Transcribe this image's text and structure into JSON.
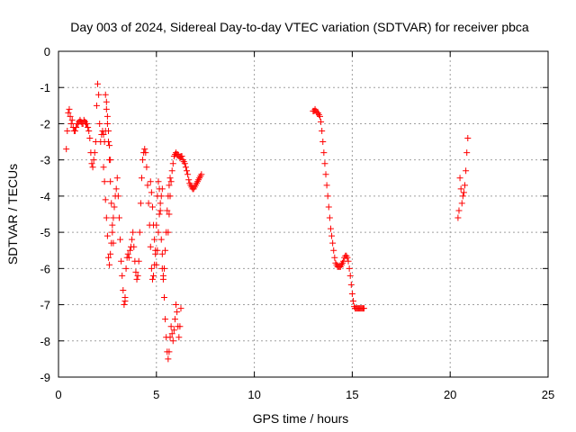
{
  "chart_data": {
    "type": "scatter",
    "title": "Day 003 of 2024, Sidereal Day-to-day VTEC variation (SDTVAR) for receiver pbca",
    "xlabel": "GPS time / hours",
    "ylabel": "SDTVAR / TECUs",
    "xlim": [
      0,
      25
    ],
    "ylim": [
      -9,
      0
    ],
    "xticks": [
      0,
      5,
      10,
      15,
      20,
      25
    ],
    "yticks": [
      0,
      -1,
      -2,
      -3,
      -4,
      -5,
      -6,
      -7,
      -8,
      -9
    ],
    "grid": true,
    "marker": "+",
    "series": [
      {
        "name": "SDTVAR",
        "color": "#ff0000",
        "segments": [
          {
            "x": [
              0.4,
              0.45,
              0.5,
              0.55,
              0.6,
              0.65,
              0.7,
              0.75,
              0.8,
              0.85,
              0.9,
              0.95,
              1.0,
              1.05,
              1.1,
              1.15,
              1.2,
              1.25,
              1.3,
              1.35,
              1.4,
              1.45,
              1.5,
              1.55,
              1.6,
              1.65,
              1.7,
              1.75,
              1.8,
              1.85,
              1.9,
              1.95,
              2.0,
              2.05,
              2.1,
              2.15,
              2.2,
              2.25,
              2.3,
              2.35,
              2.4
            ],
            "y": [
              -2.7,
              -2.2,
              -1.7,
              -1.6,
              -1.8,
              -2.0,
              -1.9,
              -2.1,
              -2.2,
              -2.2,
              -2.1,
              -2.0,
              -2.0,
              -1.95,
              -1.9,
              -1.95,
              -2.0,
              -2.0,
              -1.9,
              -1.95,
              -2.0,
              -2.0,
              -2.1,
              -2.2,
              -2.4,
              -2.8,
              -3.1,
              -3.2,
              -3.0,
              -2.8,
              -2.5,
              -1.5,
              -0.9,
              -1.2,
              -2.0,
              -2.5,
              -2.3,
              -2.2,
              -2.3,
              -2.5,
              -2.2
            ]
          },
          {
            "x": [
              2.3,
              2.35,
              2.4,
              2.45,
              2.5,
              2.55,
              2.6,
              2.65,
              2.7,
              2.75,
              2.8,
              2.85,
              2.9,
              2.95,
              3.0,
              3.05,
              3.1,
              3.15,
              3.2,
              3.25,
              3.3,
              3.35,
              3.4
            ],
            "y": [
              -3.2,
              -3.6,
              -4.1,
              -4.6,
              -5.1,
              -5.7,
              -5.9,
              -5.6,
              -5.3,
              -5.0,
              -4.6,
              -4.3,
              -4.0,
              -3.8,
              -3.5,
              -4.0,
              -4.6,
              -5.2,
              -5.8,
              -6.2,
              -6.6,
              -7.0,
              -6.8
            ]
          },
          {
            "x": [
              2.4,
              2.45,
              2.5,
              2.55,
              2.6,
              2.65,
              2.7,
              2.75,
              2.8
            ],
            "y": [
              -1.2,
              -1.6,
              -2.0,
              -2.5,
              -3.0,
              -3.6,
              -4.2,
              -4.8,
              -5.3
            ]
          },
          {
            "x": [
              2.45,
              2.5,
              2.55,
              2.6,
              2.65
            ],
            "y": [
              -1.4,
              -1.8,
              -2.2,
              -2.6,
              -3.0
            ]
          },
          {
            "x": [
              3.4,
              3.45,
              3.5,
              3.55,
              3.6,
              3.65,
              3.7,
              3.75,
              3.8,
              3.85,
              3.9,
              3.95,
              4.0,
              4.05,
              4.1,
              4.15,
              4.2,
              4.25,
              4.3,
              4.35,
              4.4,
              4.45,
              4.5,
              4.55,
              4.6,
              4.65,
              4.7,
              4.75,
              4.8,
              4.85,
              4.9,
              4.95,
              5.0,
              5.05,
              5.1,
              5.15,
              5.2,
              5.25,
              5.3,
              5.35,
              5.4,
              5.45,
              5.5,
              5.55,
              5.6,
              5.65,
              5.7
            ],
            "y": [
              -6.9,
              -6.0,
              -5.7,
              -5.6,
              -5.7,
              -5.5,
              -5.4,
              -5.2,
              -5.0,
              -5.4,
              -5.8,
              -6.1,
              -6.3,
              -6.2,
              -5.8,
              -5.0,
              -4.2,
              -3.5,
              -3.0,
              -2.8,
              -2.7,
              -2.8,
              -3.2,
              -3.7,
              -4.2,
              -4.8,
              -5.4,
              -6.0,
              -6.3,
              -6.2,
              -5.9,
              -5.5,
              -4.8,
              -4.0,
              -3.6,
              -3.8,
              -4.4,
              -5.2,
              -6.0,
              -6.3,
              -6.0,
              -5.5,
              -5.0,
              -4.4,
              -4.0,
              -3.7,
              -3.5
            ]
          },
          {
            "x": [
              4.7,
              4.75,
              4.8,
              4.85,
              4.9,
              4.95,
              5.0,
              5.05,
              5.1,
              5.15,
              5.2,
              5.25,
              5.3
            ],
            "y": [
              -3.6,
              -3.9,
              -4.3,
              -4.8,
              -5.2,
              -5.6,
              -5.9,
              -5.5,
              -5.0,
              -4.5,
              -4.2,
              -4.0,
              -3.8
            ]
          },
          {
            "x": [
              5.3,
              5.35,
              5.4,
              5.45,
              5.5,
              5.55,
              5.6,
              5.65,
              5.7,
              5.75,
              5.8,
              5.85,
              5.9,
              5.95,
              6.0,
              6.05,
              6.1,
              6.15,
              6.2,
              6.25
            ],
            "y": [
              -5.6,
              -6.2,
              -6.8,
              -7.4,
              -7.9,
              -8.3,
              -8.5,
              -8.3,
              -7.9,
              -7.6,
              -7.8,
              -8.0,
              -7.7,
              -7.4,
              -7.0,
              -7.2,
              -7.6,
              -7.9,
              -7.6,
              -7.1
            ]
          },
          {
            "x": [
              5.6,
              5.65,
              5.7,
              5.75,
              5.8,
              5.85,
              5.9,
              5.95,
              6.0,
              6.05,
              6.1,
              6.15,
              6.2,
              6.25,
              6.3,
              6.35,
              6.4,
              6.45,
              6.5,
              6.55,
              6.6,
              6.65,
              6.7,
              6.75,
              6.8,
              6.85,
              6.9,
              6.95,
              7.0,
              7.05,
              7.1,
              7.15,
              7.2,
              7.25,
              7.3
            ],
            "y": [
              -5.0,
              -4.5,
              -4.0,
              -3.6,
              -3.3,
              -3.1,
              -2.9,
              -2.85,
              -2.8,
              -2.85,
              -2.85,
              -2.9,
              -2.95,
              -2.9,
              -2.9,
              -3.0,
              -3.05,
              -3.1,
              -3.2,
              -3.3,
              -3.4,
              -3.55,
              -3.65,
              -3.7,
              -3.75,
              -3.8,
              -3.8,
              -3.75,
              -3.7,
              -3.65,
              -3.6,
              -3.55,
              -3.5,
              -3.45,
              -3.4
            ]
          },
          {
            "x": [
              13.0,
              13.05,
              13.1,
              13.15,
              13.2,
              13.25,
              13.3,
              13.35,
              13.4,
              13.45,
              13.5,
              13.55,
              13.6,
              13.65,
              13.7,
              13.75,
              13.8,
              13.85,
              13.9,
              13.95,
              14.0,
              14.05,
              14.1,
              14.15,
              14.2,
              14.25,
              14.3,
              14.35,
              14.4,
              14.45,
              14.5,
              14.55,
              14.6,
              14.65,
              14.7,
              14.75,
              14.8,
              14.85,
              14.9,
              14.95,
              15.0,
              15.05,
              15.1,
              15.15,
              15.2,
              15.25,
              15.3,
              15.35,
              15.4,
              15.45,
              15.5,
              15.55,
              15.6
            ],
            "y": [
              -1.65,
              -1.65,
              -1.6,
              -1.65,
              -1.7,
              -1.7,
              -1.75,
              -1.8,
              -1.95,
              -2.2,
              -2.5,
              -2.8,
              -3.1,
              -3.4,
              -3.7,
              -4.0,
              -4.3,
              -4.6,
              -4.9,
              -5.1,
              -5.3,
              -5.5,
              -5.7,
              -5.85,
              -5.9,
              -5.95,
              -5.95,
              -5.95,
              -5.95,
              -5.9,
              -5.85,
              -5.8,
              -5.7,
              -5.65,
              -5.65,
              -5.7,
              -5.8,
              -6.0,
              -6.2,
              -6.45,
              -6.7,
              -6.9,
              -7.05,
              -7.1,
              -7.1,
              -7.1,
              -7.1,
              -7.1,
              -7.1,
              -7.1,
              -7.1,
              -7.1,
              -7.1
            ]
          },
          {
            "x": [
              20.4,
              20.45,
              20.5,
              20.55,
              20.6,
              20.65,
              20.7,
              20.75,
              20.8,
              20.85,
              20.9
            ],
            "y": [
              -4.6,
              -4.4,
              -3.5,
              -3.8,
              -4.2,
              -4.0,
              -3.9,
              -3.7,
              -3.3,
              -2.8,
              -2.4
            ]
          }
        ]
      }
    ]
  }
}
